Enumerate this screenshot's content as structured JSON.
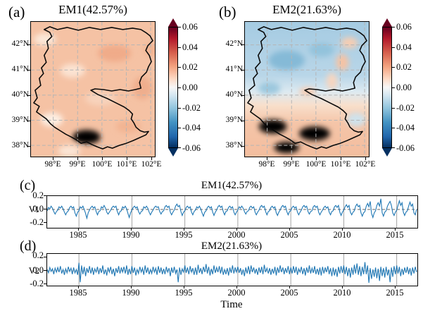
{
  "panel_a": {
    "letter": "(a)",
    "title": "EM1(42.57%)"
  },
  "panel_b": {
    "letter": "(b)",
    "title": "EM2(21.63%)"
  },
  "panel_c": {
    "letter": "(c)",
    "title": "EM1(42.57%)",
    "ylabel": "V1"
  },
  "panel_d": {
    "letter": "(d)",
    "title": "EM2(21.63%)",
    "ylabel": "V2",
    "xlabel": "Time"
  },
  "maps": {
    "lat_ticks": [
      "42°N",
      "41°N",
      "40°N",
      "39°N",
      "38°N"
    ],
    "lon_ticks": [
      "98°E",
      "99°E",
      "100°E",
      "101°E",
      "102°E"
    ],
    "colorbar_ticks": [
      "0.06",
      "0.04",
      "0.02",
      "0.00",
      "-0.02",
      "-0.04",
      "-0.06"
    ]
  },
  "ts": {
    "yticks": [
      "0.2",
      "0.0",
      "-0.2"
    ],
    "xticks": [
      "1985",
      "1990",
      "1995",
      "2000",
      "2005",
      "2010",
      "2015"
    ]
  },
  "colors": {
    "line": "#1f77b4",
    "grid_ts": "#999999",
    "grid_map": "#b5b5b5",
    "cmap_max_red": "#67001f",
    "cmap_min_blue": "#053061"
  },
  "chart_data": [
    {
      "type": "heatmap",
      "id": "em1",
      "title": "EM1(42.57%)",
      "variance_explained_pct": 42.57,
      "lon_ticks": [
        "98°E",
        "99°E",
        "100°E",
        "101°E",
        "102°E"
      ],
      "lat_ticks": [
        "42°N",
        "41°N",
        "40°N",
        "39°N",
        "38°N"
      ],
      "colormap": "RdBu_r (red positive, blue negative)",
      "colorbar_range": [
        -0.06,
        0.06
      ],
      "colorbar_ticks": [
        0.06,
        0.04,
        0.02,
        0.0,
        -0.02,
        -0.04,
        -0.06
      ],
      "overlay": "black region boundary outline with gray dashed lat/lon grid",
      "pattern": "uniform weak positive loadings ~0.01 to 0.03 over the whole domain"
    },
    {
      "type": "heatmap",
      "id": "em2",
      "title": "EM2(21.63%)",
      "variance_explained_pct": 21.63,
      "lon_ticks": [
        "98°E",
        "99°E",
        "100°E",
        "101°E",
        "102°E"
      ],
      "lat_ticks": [
        "42°N",
        "41°N",
        "40°N",
        "39°N",
        "38°N"
      ],
      "colormap": "RdBu_r (red positive, blue negative)",
      "colorbar_range": [
        -0.06,
        0.06
      ],
      "colorbar_ticks": [
        0.06,
        0.04,
        0.02,
        0.0,
        -0.02,
        -0.04,
        -0.06
      ],
      "overlay": "black region boundary outline with gray dashed lat/lon grid",
      "pattern": "north/south dipole: negative ~-0.02 north of 40.5N, positive ~0.02 south"
    },
    {
      "type": "line",
      "id": "v1",
      "title": "EM1(42.57%)",
      "ylabel": "V1",
      "x_start": 1982.0,
      "x_step": 0.125,
      "xlim": [
        1982,
        2016.95
      ],
      "ylim": [
        -0.27,
        0.2
      ],
      "xticks": [
        1985,
        1990,
        1995,
        2000,
        2005,
        2010,
        2015
      ],
      "yticks": [
        0.2,
        0.0,
        -0.2
      ],
      "grid_years": [
        1985,
        1990,
        1995,
        2000,
        2005,
        2010,
        2015
      ],
      "zero_line": "dashed",
      "line_color": "#1f77b4",
      "values": [
        -0.02,
        0.03,
        0.01,
        0.05,
        0.02,
        -0.03,
        -0.07,
        -0.03,
        -0.01,
        0.04,
        0.02,
        0.05,
        0.01,
        -0.04,
        -0.08,
        -0.04,
        -0.02,
        0.03,
        0.05,
        0.02,
        0.04,
        -0.05,
        -0.1,
        -0.04,
        -0.02,
        0.04,
        0.02,
        0.05,
        0.0,
        -0.06,
        -0.13,
        -0.05,
        -0.01,
        0.03,
        0.05,
        0.02,
        0.04,
        -0.03,
        -0.08,
        -0.03,
        -0.02,
        0.04,
        0.02,
        0.06,
        0.02,
        -0.04,
        -0.07,
        -0.04,
        -0.01,
        0.03,
        0.05,
        0.03,
        0.05,
        -0.03,
        -0.08,
        -0.03,
        -0.02,
        0.04,
        0.02,
        0.05,
        0.01,
        -0.06,
        -0.12,
        -0.05,
        -0.01,
        0.03,
        0.05,
        0.02,
        0.04,
        -0.03,
        -0.07,
        -0.03,
        -0.02,
        0.04,
        0.02,
        0.05,
        0.02,
        -0.04,
        -0.08,
        -0.04,
        -0.01,
        0.03,
        0.05,
        0.03,
        0.04,
        -0.03,
        -0.07,
        -0.03,
        -0.02,
        0.04,
        0.06,
        0.03,
        0.05,
        -0.04,
        -0.08,
        -0.04,
        -0.01,
        0.05,
        0.08,
        0.04,
        0.06,
        -0.03,
        -0.09,
        -0.04,
        -0.02,
        0.03,
        0.05,
        0.02,
        0.04,
        -0.04,
        -0.08,
        -0.03,
        -0.01,
        0.04,
        0.02,
        0.05,
        0.01,
        -0.05,
        -0.1,
        -0.04,
        -0.02,
        0.03,
        0.05,
        0.02,
        0.04,
        -0.04,
        -0.09,
        -0.04,
        -0.01,
        0.04,
        0.06,
        0.03,
        0.05,
        -0.03,
        -0.08,
        -0.03,
        -0.02,
        0.03,
        0.05,
        0.02,
        0.04,
        -0.04,
        -0.08,
        -0.04,
        -0.01,
        0.04,
        0.02,
        0.05,
        0.02,
        -0.03,
        -0.07,
        -0.03,
        -0.02,
        0.03,
        0.05,
        0.02,
        0.04,
        -0.04,
        -0.08,
        -0.04,
        -0.01,
        0.04,
        0.06,
        0.03,
        0.05,
        -0.03,
        -0.08,
        -0.03,
        -0.02,
        0.03,
        0.05,
        0.02,
        0.04,
        -0.05,
        -0.09,
        -0.04,
        -0.01,
        0.04,
        0.06,
        0.03,
        0.05,
        -0.03,
        -0.08,
        -0.03,
        -0.02,
        0.03,
        0.05,
        0.02,
        0.04,
        -0.04,
        -0.08,
        -0.04,
        -0.01,
        0.04,
        0.06,
        0.03,
        0.05,
        -0.03,
        -0.07,
        -0.03,
        -0.02,
        0.04,
        0.06,
        0.03,
        0.05,
        -0.04,
        -0.08,
        -0.04,
        -0.01,
        0.03,
        0.05,
        0.02,
        0.04,
        -0.04,
        -0.08,
        -0.03,
        -0.02,
        0.04,
        0.06,
        0.03,
        0.06,
        -0.04,
        -0.09,
        -0.04,
        -0.01,
        0.04,
        0.07,
        0.03,
        0.06,
        -0.04,
        -0.08,
        -0.04,
        -0.02,
        0.05,
        0.08,
        0.04,
        0.06,
        -0.05,
        -0.1,
        -0.05,
        -0.03,
        0.05,
        0.09,
        0.04,
        0.12,
        -0.06,
        -0.12,
        -0.05,
        -0.02,
        0.06,
        0.1,
        0.05,
        0.16,
        -0.05,
        -0.1,
        -0.04,
        -0.02,
        0.05,
        0.09,
        0.12,
        0.06,
        -0.05,
        -0.09,
        -0.04,
        -0.01,
        0.06,
        0.13,
        0.06,
        0.1,
        -0.04,
        -0.09,
        -0.04,
        -0.02,
        0.05,
        0.11,
        0.05,
        0.08,
        -0.05,
        -0.08,
        0.0
      ]
    },
    {
      "type": "line",
      "id": "v2",
      "title": "EM2(21.63%)",
      "ylabel": "V2",
      "xlabel": "Time",
      "x_start": 1982.0,
      "x_step": 0.125,
      "xlim": [
        1982,
        2016.95
      ],
      "ylim": [
        -0.21,
        0.24
      ],
      "xticks": [
        1985,
        1990,
        1995,
        2000,
        2005,
        2010,
        2015
      ],
      "yticks": [
        0.2,
        0.0,
        -0.2
      ],
      "grid_years": [
        1985,
        1990,
        1995,
        2000,
        2005,
        2010,
        2015
      ],
      "zero_line": "dashed",
      "line_color": "#1f77b4",
      "values": [
        0.02,
        -0.03,
        0.05,
        -0.01,
        0.03,
        -0.05,
        0.04,
        -0.02,
        0.05,
        -0.02,
        0.07,
        -0.04,
        0.02,
        -0.06,
        0.03,
        -0.03,
        0.06,
        -0.01,
        0.04,
        -0.05,
        0.05,
        -0.03,
        0.02,
        -0.06,
        0.12,
        -0.17,
        0.08,
        -0.05,
        0.06,
        -0.08,
        0.04,
        -0.03,
        0.07,
        -0.04,
        0.05,
        -0.06,
        0.03,
        -0.02,
        0.06,
        -0.05,
        0.04,
        -0.03,
        0.08,
        -0.05,
        0.02,
        -0.07,
        0.05,
        -0.02,
        0.06,
        -0.05,
        0.03,
        -0.08,
        0.04,
        -0.03,
        0.07,
        -0.04,
        0.05,
        -0.02,
        0.06,
        -0.04,
        0.08,
        -0.06,
        0.03,
        -0.05,
        0.07,
        -0.03,
        0.05,
        -0.07,
        0.02,
        -0.04,
        0.06,
        -0.02,
        0.04,
        -0.06,
        0.08,
        -0.03,
        0.05,
        -0.05,
        0.02,
        -0.04,
        0.06,
        -0.02,
        0.04,
        -0.06,
        0.07,
        -0.03,
        0.05,
        -0.05,
        0.03,
        -0.05,
        0.06,
        -0.02,
        0.04,
        -0.08,
        0.05,
        -0.03,
        0.06,
        -0.04,
        0.02,
        -0.17,
        0.05,
        -0.06,
        0.03,
        -0.02,
        0.08,
        -0.03,
        0.05,
        -0.05,
        0.07,
        -0.02,
        0.04,
        -0.06,
        0.05,
        -0.06,
        0.09,
        -0.03,
        0.04,
        -0.05,
        0.06,
        -0.02,
        0.1,
        -0.04,
        0.06,
        -0.07,
        0.03,
        -0.05,
        0.08,
        -0.03,
        0.05,
        -0.02,
        0.07,
        -0.04,
        0.06,
        -0.06,
        0.02,
        -0.05,
        0.04,
        -0.07,
        0.05,
        -0.03,
        0.08,
        -0.04,
        0.05,
        -0.02,
        0.06,
        -0.03,
        0.04,
        -0.06,
        0.02,
        -0.08,
        0.05,
        -0.04,
        0.07,
        -0.05,
        0.08,
        -0.02,
        0.05,
        -0.04,
        0.03,
        -0.06,
        0.05,
        -0.03,
        0.06,
        -0.05,
        0.09,
        -0.02,
        0.04,
        -0.04,
        0.04,
        -0.06,
        0.03,
        -0.04,
        0.06,
        -0.07,
        0.05,
        -0.03,
        0.08,
        -0.02,
        0.05,
        -0.05,
        0.04,
        -0.03,
        0.07,
        -0.05,
        0.05,
        -0.04,
        0.07,
        -0.03,
        0.06,
        -0.06,
        0.03,
        -0.02,
        0.06,
        -0.05,
        0.04,
        -0.07,
        0.05,
        -0.03,
        0.08,
        -0.04,
        0.04,
        -0.03,
        0.07,
        -0.05,
        0.03,
        -0.06,
        0.05,
        -0.07,
        0.06,
        -0.04,
        0.05,
        -0.02,
        0.07,
        -0.05,
        0.04,
        -0.08,
        0.05,
        -0.07,
        0.03,
        -0.09,
        0.06,
        -0.04,
        0.07,
        -0.03,
        0.08,
        -0.05,
        0.06,
        -0.08,
        0.04,
        -0.1,
        0.05,
        -0.06,
        0.09,
        -0.04,
        0.11,
        -0.06,
        0.07,
        -0.08,
        0.06,
        -0.05,
        0.13,
        -0.05,
        0.08,
        -0.18,
        0.04,
        -0.12,
        0.02,
        -0.09,
        0.05,
        -0.11,
        0.03,
        -0.15,
        0.06,
        -0.08,
        0.04,
        -0.1,
        0.06,
        -0.07,
        0.02,
        -0.17,
        0.05,
        -0.09,
        0.07,
        -0.05,
        0.08,
        -0.04,
        0.06,
        -0.08,
        0.03,
        -0.06,
        0.05,
        -0.03,
        0.06,
        -0.05,
        0.04,
        -0.07,
        0.05,
        -0.04,
        0.06,
        -0.02
      ]
    }
  ]
}
